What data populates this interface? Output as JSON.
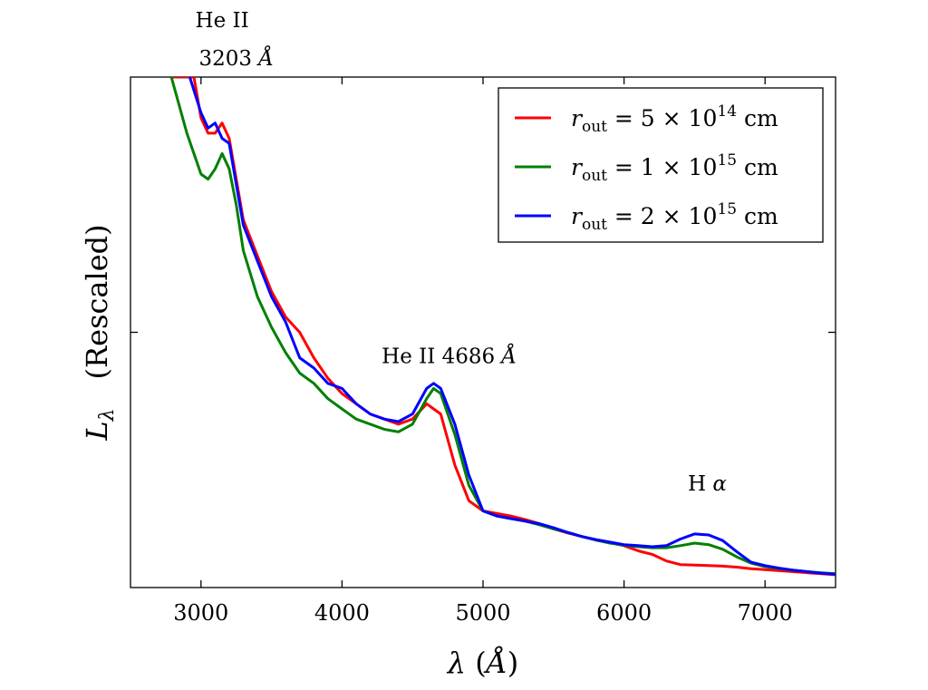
{
  "chart_data": {
    "type": "line",
    "title": "",
    "xlabel": "λ (Å)",
    "ylabel": "L_λ (Rescaled)",
    "ylabel_main": "L",
    "ylabel_sub": "λ",
    "ylabel_note": "(Rescaled)",
    "xlim": [
      2500,
      7500
    ],
    "ylim": [
      0,
      100
    ],
    "x_ticks": [
      3000,
      4000,
      5000,
      6000,
      7000
    ],
    "y_tick_labels": "none",
    "grid": false,
    "legend_position": "top-right",
    "annotations": [
      {
        "id": "he2-3203-line1",
        "text": "He II",
        "x": 3150,
        "y_above_top": true,
        "row": 1
      },
      {
        "id": "he2-3203-line2",
        "text": "3203 Å",
        "x": 3250,
        "y_above_top": true,
        "row": 2
      },
      {
        "id": "he2-4686",
        "text": "He II 4686 Å",
        "x": 4760,
        "y": 44
      },
      {
        "id": "h-alpha",
        "text": "H α",
        "x": 6590,
        "y": 19
      }
    ],
    "series": [
      {
        "name": "r_out = 5 × 10^14 cm",
        "legend": {
          "var": "r",
          "sub": "out",
          "eq": " = 5 × 10",
          "exp": "14",
          "unit": " cm"
        },
        "color": "#ff0000",
        "x": [
          2790,
          2950,
          3000,
          3050,
          3100,
          3150,
          3200,
          3250,
          3300,
          3400,
          3500,
          3600,
          3700,
          3800,
          3900,
          4000,
          4100,
          4200,
          4300,
          4400,
          4500,
          4600,
          4650,
          4700,
          4800,
          4900,
          5000,
          5100,
          5200,
          5300,
          5400,
          5500,
          5600,
          5700,
          5800,
          5900,
          6000,
          6100,
          6200,
          6300,
          6400,
          6500,
          6600,
          6700,
          6800,
          6900,
          7000,
          7100,
          7200,
          7300,
          7400,
          7500
        ],
        "y": [
          100,
          100,
          92,
          89,
          89,
          91,
          88,
          80,
          72,
          65,
          58,
          53,
          50,
          45,
          41,
          38,
          36,
          34,
          33,
          32,
          33,
          36,
          35,
          34,
          24,
          17,
          15,
          14.5,
          14,
          13.3,
          12.5,
          11.5,
          10.7,
          10,
          9.3,
          8.8,
          8.2,
          7.2,
          6.5,
          5.2,
          4.5,
          4.4,
          4.3,
          4.2,
          4,
          3.7,
          3.5,
          3.3,
          3.1,
          2.9,
          2.7,
          2.5
        ]
      },
      {
        "name": "r_out = 1 × 10^15 cm",
        "legend": {
          "var": "r",
          "sub": "out",
          "eq": " = 1 × 10",
          "exp": "15",
          "unit": " cm"
        },
        "color": "#008000",
        "x": [
          2790,
          2900,
          3000,
          3050,
          3100,
          3150,
          3200,
          3250,
          3300,
          3400,
          3500,
          3600,
          3700,
          3800,
          3900,
          4000,
          4100,
          4200,
          4300,
          4400,
          4500,
          4600,
          4650,
          4700,
          4800,
          4900,
          5000,
          5100,
          5200,
          5300,
          5400,
          5500,
          5600,
          5700,
          5800,
          5900,
          6000,
          6100,
          6200,
          6300,
          6400,
          6500,
          6600,
          6700,
          6800,
          6900,
          7000,
          7100,
          7200,
          7300,
          7400,
          7500
        ],
        "y": [
          100,
          89,
          81,
          80,
          82,
          85,
          82,
          75,
          66,
          57,
          51,
          46,
          42,
          40,
          37,
          35,
          33,
          32,
          31,
          30.5,
          32,
          37,
          39,
          38,
          30,
          20,
          15,
          14,
          13.5,
          13,
          12.3,
          11.5,
          10.8,
          10,
          9.3,
          8.7,
          8.3,
          8,
          7.8,
          7.8,
          8.2,
          8.7,
          8.4,
          7.5,
          6,
          4.8,
          4.1,
          3.7,
          3.4,
          3.1,
          2.9,
          2.7
        ]
      },
      {
        "name": "r_out = 2 × 10^15 cm",
        "legend": {
          "var": "r",
          "sub": "out",
          "eq": " = 2 × 10",
          "exp": "15",
          "unit": " cm"
        },
        "color": "#0000ff",
        "x": [
          2920,
          3000,
          3050,
          3100,
          3150,
          3200,
          3250,
          3300,
          3400,
          3500,
          3600,
          3700,
          3800,
          3900,
          4000,
          4100,
          4200,
          4300,
          4400,
          4500,
          4600,
          4650,
          4700,
          4800,
          4900,
          5000,
          5100,
          5200,
          5300,
          5400,
          5500,
          5600,
          5700,
          5800,
          5900,
          6000,
          6100,
          6200,
          6300,
          6400,
          6500,
          6600,
          6700,
          6800,
          6900,
          7000,
          7100,
          7200,
          7300,
          7400,
          7500
        ],
        "y": [
          100,
          93,
          90,
          91,
          88,
          87,
          79,
          71,
          64,
          57,
          52,
          45,
          43,
          40,
          39,
          36,
          34,
          33,
          32.5,
          34,
          39,
          40,
          39,
          32,
          22,
          15,
          14,
          13.5,
          13,
          12.5,
          11.7,
          10.8,
          10,
          9.4,
          8.9,
          8.4,
          8.2,
          8,
          8.2,
          9.5,
          10.5,
          10.3,
          9.2,
          7,
          5,
          4.3,
          3.8,
          3.4,
          3.1,
          2.8,
          2.6
        ]
      }
    ]
  }
}
